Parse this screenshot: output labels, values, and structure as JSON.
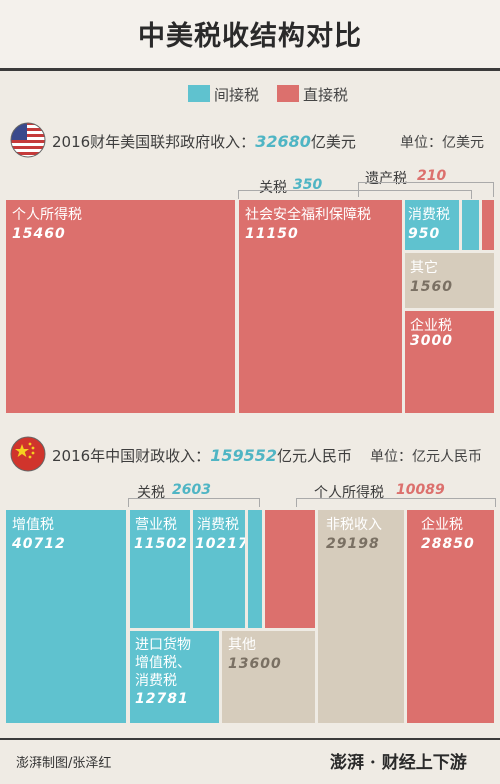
{
  "title": "中美税收结构对比",
  "legend": {
    "indirect": "间接税",
    "direct": "直接税",
    "indirect_color": "#5fc2cf",
    "direct_color": "#dc706d",
    "other_color": "#d6ccbc"
  },
  "us": {
    "flag_icon": "us-flag-icon",
    "prefix": "2016财年美国联邦政府收入：",
    "total": "32680",
    "total_unit": "亿美元",
    "unit_label": "单位：亿美元"
  },
  "cn": {
    "flag_icon": "china-flag-icon",
    "prefix": "2016年中国财政收入：",
    "total": "159552",
    "total_unit": "亿元人民币",
    "unit_label": "单位：亿元人民币"
  },
  "chart_data": [
    {
      "type": "treemap",
      "title": "2016财年美国联邦政府收入：32680亿美元",
      "unit": "亿美元",
      "items": [
        {
          "name": "个人所得税",
          "value": 15460,
          "category": "直接税"
        },
        {
          "name": "社会安全福利保障税",
          "value": 11150,
          "category": "直接税"
        },
        {
          "name": "消费税",
          "value": 950,
          "category": "间接税"
        },
        {
          "name": "关税",
          "value": 350,
          "category": "间接税"
        },
        {
          "name": "遗产税",
          "value": 210,
          "category": "直接税"
        },
        {
          "name": "其它",
          "value": 1560,
          "category": "其它"
        },
        {
          "name": "企业税",
          "value": 3000,
          "category": "直接税"
        }
      ]
    },
    {
      "type": "treemap",
      "title": "2016年中国财政收入：159552亿元人民币",
      "unit": "亿元人民币",
      "items": [
        {
          "name": "增值税",
          "value": 40712,
          "category": "间接税"
        },
        {
          "name": "营业税",
          "value": 11502,
          "category": "间接税"
        },
        {
          "name": "消费税",
          "value": 10217,
          "category": "间接税"
        },
        {
          "name": "关税",
          "value": 2603,
          "category": "间接税"
        },
        {
          "name": "进口货物增值税、消费税",
          "value": 12781,
          "category": "间接税"
        },
        {
          "name": "其他",
          "value": 13600,
          "category": "其它"
        },
        {
          "name": "个人所得税",
          "value": 10089,
          "category": "直接税"
        },
        {
          "name": "非税收入",
          "value": 29198,
          "category": "其它"
        },
        {
          "name": "企业税",
          "value": 28850,
          "category": "直接税"
        }
      ]
    }
  ],
  "us_labels": {
    "individual": "个人所得税",
    "individual_v": "15460",
    "social": "社会安全福利保障税",
    "social_v": "11150",
    "excise": "消费税",
    "excise_v": "950",
    "customs": "关税",
    "customs_v": "350",
    "estate": "遗产税",
    "estate_v": "210",
    "other": "其它",
    "other_v": "1560",
    "corp": "企业税",
    "corp_v": "3000"
  },
  "cn_labels": {
    "vat": "增值税",
    "vat_v": "40712",
    "business": "营业税",
    "business_v": "11502",
    "excise": "消费税",
    "excise_v": "10217",
    "customs": "关税",
    "customs_v": "2603",
    "import1": "进口货物",
    "import2": "增值税、",
    "import3": "消费税",
    "import_v": "12781",
    "other": "其他",
    "other_v": "13600",
    "individual": "个人所得税",
    "individual_v": "10089",
    "nontax": "非税收入",
    "nontax_v": "29198",
    "corp": "企业税",
    "corp_v": "28850"
  },
  "footer": {
    "credit": "澎湃制图/张泽红",
    "brand": "澎湃 · 财经上下游"
  }
}
